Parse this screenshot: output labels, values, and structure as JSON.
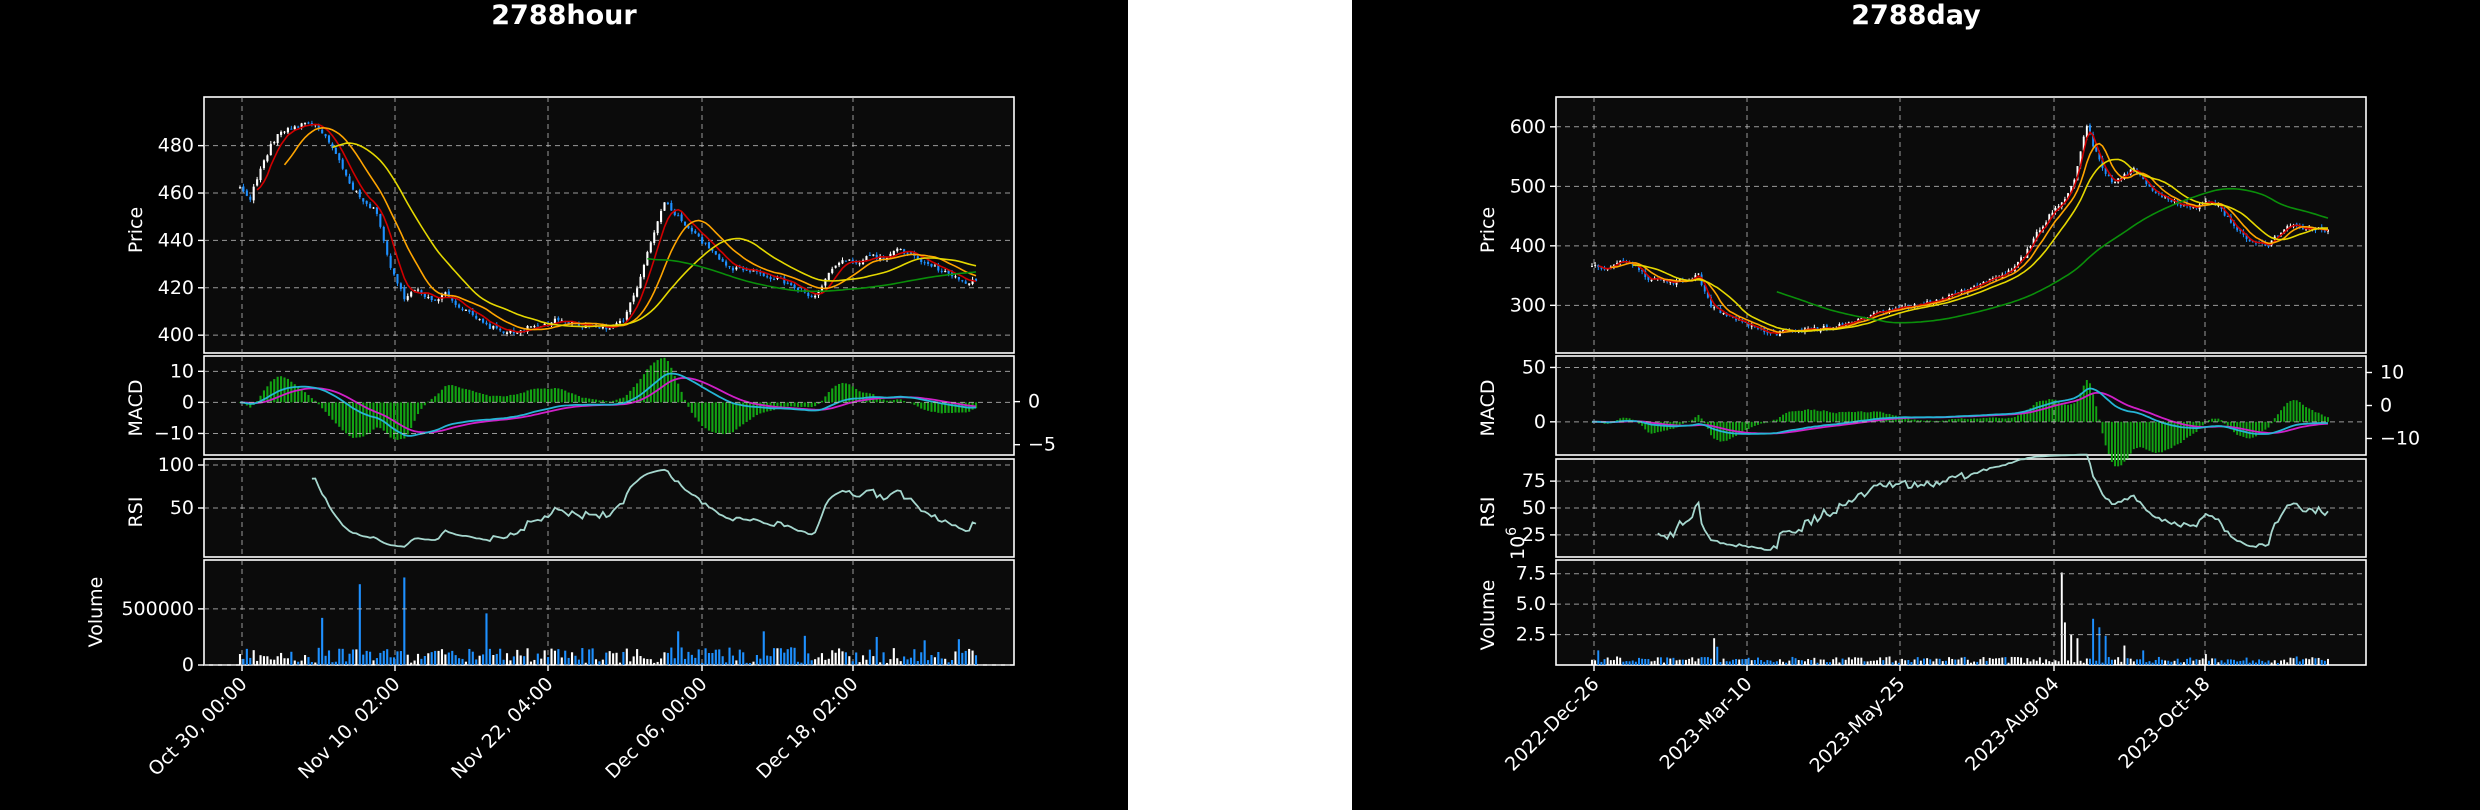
{
  "figures": [
    {
      "title": "2788hour",
      "panel_labels": {
        "price": "Price",
        "macd": "MACD",
        "rsi": "RSI",
        "volume": "Volume"
      },
      "x_ticks": [
        "Oct 30, 00:00",
        "Nov 10, 02:00",
        "Nov 22, 04:00",
        "Dec 06, 00:00",
        "Dec 18, 02:00"
      ],
      "price_ticks": [
        "400",
        "420",
        "440",
        "460",
        "480"
      ],
      "macd_ticks_left": [
        "10",
        "0",
        "−10"
      ],
      "macd_ticks_right": [
        "0",
        "−5"
      ],
      "rsi_ticks": [
        "50",
        "100"
      ],
      "volume_ticks": [
        "0",
        "500000"
      ],
      "volume_multiplier": ""
    },
    {
      "title": "2788day",
      "panel_labels": {
        "price": "Price",
        "macd": "MACD",
        "rsi": "RSI",
        "volume": "Volume"
      },
      "x_ticks": [
        "2022-Dec-26",
        "2023-Mar-10",
        "2023-May-25",
        "2023-Aug-04",
        "2023-Oct-18"
      ],
      "price_ticks": [
        "300",
        "400",
        "500",
        "600"
      ],
      "macd_ticks_left": [
        "0",
        "50"
      ],
      "macd_ticks_right": [
        "10",
        "0",
        "−10"
      ],
      "rsi_ticks": [
        "25",
        "50",
        "75"
      ],
      "volume_ticks": [
        "2.5",
        "5.0",
        "7.5"
      ],
      "volume_multiplier": "1e6"
    }
  ],
  "colors": {
    "background": "#000000",
    "axes_face": "#0b0b0b",
    "grid": "#bdbdbd",
    "candle_up": "#ffffff",
    "candle_down": "#1e90ff",
    "ma_fast": "#d00000",
    "ma_mid": "#ffa500",
    "ma_slow": "#e5d800",
    "ma_long": "#0a8f0a",
    "macd_line": "#26b5d6",
    "signal_line": "#d020c8",
    "histogram": "#13a313",
    "rsi_line": "#a6d8cf"
  },
  "chart_data": [
    {
      "type": "candlestick",
      "title": "2788hour",
      "x_tick_labels": [
        "Oct 30, 00:00",
        "Nov 10, 02:00",
        "Nov 22, 04:00",
        "Dec 06, 00:00",
        "Dec 18, 02:00"
      ],
      "price": {
        "ylabel": "Price",
        "ylim": [
          395,
          498
        ],
        "close_path": [
          [
            0,
            462
          ],
          [
            3,
            458
          ],
          [
            6,
            470
          ],
          [
            9,
            480
          ],
          [
            12,
            486
          ],
          [
            16,
            488
          ],
          [
            20,
            490
          ],
          [
            24,
            486
          ],
          [
            28,
            476
          ],
          [
            32,
            464
          ],
          [
            36,
            456
          ],
          [
            40,
            452
          ],
          [
            44,
            428
          ],
          [
            48,
            416
          ],
          [
            52,
            420
          ],
          [
            56,
            414
          ],
          [
            60,
            418
          ],
          [
            64,
            412
          ],
          [
            68,
            408
          ],
          [
            72,
            404
          ],
          [
            76,
            402
          ],
          [
            80,
            401
          ],
          [
            84,
            403
          ],
          [
            88,
            404
          ],
          [
            92,
            406
          ],
          [
            96,
            405
          ],
          [
            100,
            404
          ],
          [
            104,
            404
          ],
          [
            108,
            403
          ],
          [
            112,
            406
          ],
          [
            116,
            420
          ],
          [
            120,
            440
          ],
          [
            124,
            456
          ],
          [
            128,
            450
          ],
          [
            132,
            444
          ],
          [
            136,
            438
          ],
          [
            140,
            432
          ],
          [
            144,
            428
          ],
          [
            148,
            428
          ],
          [
            152,
            426
          ],
          [
            156,
            424
          ],
          [
            160,
            422
          ],
          [
            164,
            418
          ],
          [
            168,
            416
          ],
          [
            172,
            426
          ],
          [
            176,
            432
          ],
          [
            180,
            430
          ],
          [
            184,
            434
          ],
          [
            188,
            432
          ],
          [
            192,
            436
          ],
          [
            196,
            434
          ],
          [
            200,
            430
          ],
          [
            204,
            428
          ],
          [
            208,
            425
          ],
          [
            212,
            422
          ],
          [
            215,
            423
          ]
        ],
        "ma_windows": [
          3,
          7,
          14,
          60
        ]
      },
      "macd": {
        "ylabel": "MACD",
        "ylim": [
          -15,
          13
        ],
        "histogram_ylim": [
          -6.2,
          5.3
        ]
      },
      "rsi": {
        "ylabel": "RSI",
        "ylim": [
          0,
          100
        ],
        "period": 14
      },
      "volume": {
        "ylabel": "Volume",
        "ylim": [
          0,
          900000
        ],
        "spikes": [
          [
            35,
            720000
          ],
          [
            48,
            780000
          ],
          [
            24,
            420000
          ],
          [
            72,
            460000
          ],
          [
            128,
            300000
          ],
          [
            153,
            300000
          ],
          [
            165,
            260000
          ],
          [
            186,
            250000
          ],
          [
            200,
            220000
          ],
          [
            210,
            230000
          ]
        ]
      },
      "bars": 216
    },
    {
      "type": "candlestick",
      "title": "2788day",
      "x_tick_labels": [
        "2022-Dec-26",
        "2023-Mar-10",
        "2023-May-25",
        "2023-Aug-04",
        "2023-Oct-18"
      ],
      "price": {
        "ylabel": "Price",
        "ylim": [
          230,
          640
        ],
        "close_path": [
          [
            0,
            366
          ],
          [
            5,
            362
          ],
          [
            10,
            374
          ],
          [
            14,
            366
          ],
          [
            18,
            342
          ],
          [
            22,
            345
          ],
          [
            26,
            338
          ],
          [
            30,
            344
          ],
          [
            34,
            350
          ],
          [
            38,
            300
          ],
          [
            42,
            286
          ],
          [
            46,
            276
          ],
          [
            50,
            265
          ],
          [
            54,
            258
          ],
          [
            58,
            252
          ],
          [
            62,
            256
          ],
          [
            66,
            260
          ],
          [
            70,
            258
          ],
          [
            74,
            262
          ],
          [
            78,
            264
          ],
          [
            82,
            270
          ],
          [
            86,
            276
          ],
          [
            90,
            284
          ],
          [
            94,
            290
          ],
          [
            98,
            294
          ],
          [
            102,
            298
          ],
          [
            106,
            302
          ],
          [
            110,
            308
          ],
          [
            114,
            316
          ],
          [
            118,
            324
          ],
          [
            122,
            330
          ],
          [
            126,
            340
          ],
          [
            130,
            350
          ],
          [
            134,
            362
          ],
          [
            138,
            384
          ],
          [
            142,
            420
          ],
          [
            146,
            450
          ],
          [
            150,
            470
          ],
          [
            154,
            508
          ],
          [
            156,
            560
          ],
          [
            158,
            600
          ],
          [
            161,
            555
          ],
          [
            164,
            520
          ],
          [
            167,
            505
          ],
          [
            170,
            520
          ],
          [
            173,
            530
          ],
          [
            176,
            510
          ],
          [
            180,
            490
          ],
          [
            184,
            478
          ],
          [
            188,
            470
          ],
          [
            192,
            462
          ],
          [
            196,
            475
          ],
          [
            200,
            468
          ],
          [
            204,
            440
          ],
          [
            208,
            415
          ],
          [
            212,
            405
          ],
          [
            216,
            402
          ],
          [
            220,
            425
          ],
          [
            224,
            435
          ],
          [
            228,
            428
          ],
          [
            232,
            430
          ],
          [
            235,
            424
          ]
        ],
        "ma_windows": [
          3,
          7,
          14,
          60
        ]
      },
      "macd": {
        "ylabel": "MACD",
        "ylim": [
          -25,
          55
        ],
        "histogram_ylim": [
          -15,
          15
        ]
      },
      "rsi": {
        "ylabel": "RSI",
        "ylim": [
          10,
          90
        ],
        "period": 14
      },
      "volume": {
        "ylabel": "Volume",
        "ylim": [
          0,
          8300000
        ],
        "multiplier": "1e6",
        "spikes": [
          [
            2,
            1200000
          ],
          [
            8,
            700000
          ],
          [
            39,
            2200000
          ],
          [
            40,
            1500000
          ],
          [
            95,
            700000
          ],
          [
            150,
            7600000
          ],
          [
            151,
            3500000
          ],
          [
            153,
            2500000
          ],
          [
            155,
            2200000
          ],
          [
            160,
            3800000
          ],
          [
            162,
            3100000
          ],
          [
            164,
            2400000
          ],
          [
            170,
            1600000
          ],
          [
            176,
            1200000
          ],
          [
            196,
            900000
          ],
          [
            225,
            700000
          ]
        ]
      },
      "bars": 236
    }
  ]
}
